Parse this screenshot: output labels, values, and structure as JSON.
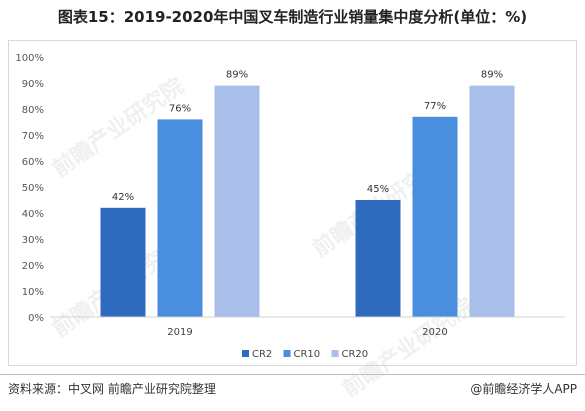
{
  "title": "图表15：2019-2020年中国叉车制造行业销量集中度分析(单位：%)",
  "source": "资料来源：中叉网 前瞻产业研究院整理",
  "brand": "@前瞻经济学人APP",
  "watermark": "前瞻产业研究院",
  "chart_data": {
    "type": "bar",
    "categories": [
      "2019",
      "2020"
    ],
    "series": [
      {
        "name": "CR2",
        "values": [
          42,
          45
        ],
        "color": "#2e6bbf"
      },
      {
        "name": "CR10",
        "values": [
          76,
          77
        ],
        "color": "#4a8ee0"
      },
      {
        "name": "CR20",
        "values": [
          89,
          89
        ],
        "color": "#a9bfe9"
      }
    ],
    "data_labels": [
      [
        "42%",
        "45%"
      ],
      [
        "76%",
        "77%"
      ],
      [
        "89%",
        "89%"
      ]
    ],
    "yticks": [
      "0%",
      "10%",
      "20%",
      "30%",
      "40%",
      "50%",
      "60%",
      "70%",
      "80%",
      "90%",
      "100%"
    ],
    "ylim": [
      0,
      100
    ],
    "grid": false,
    "legend_position": "bottom-center"
  }
}
